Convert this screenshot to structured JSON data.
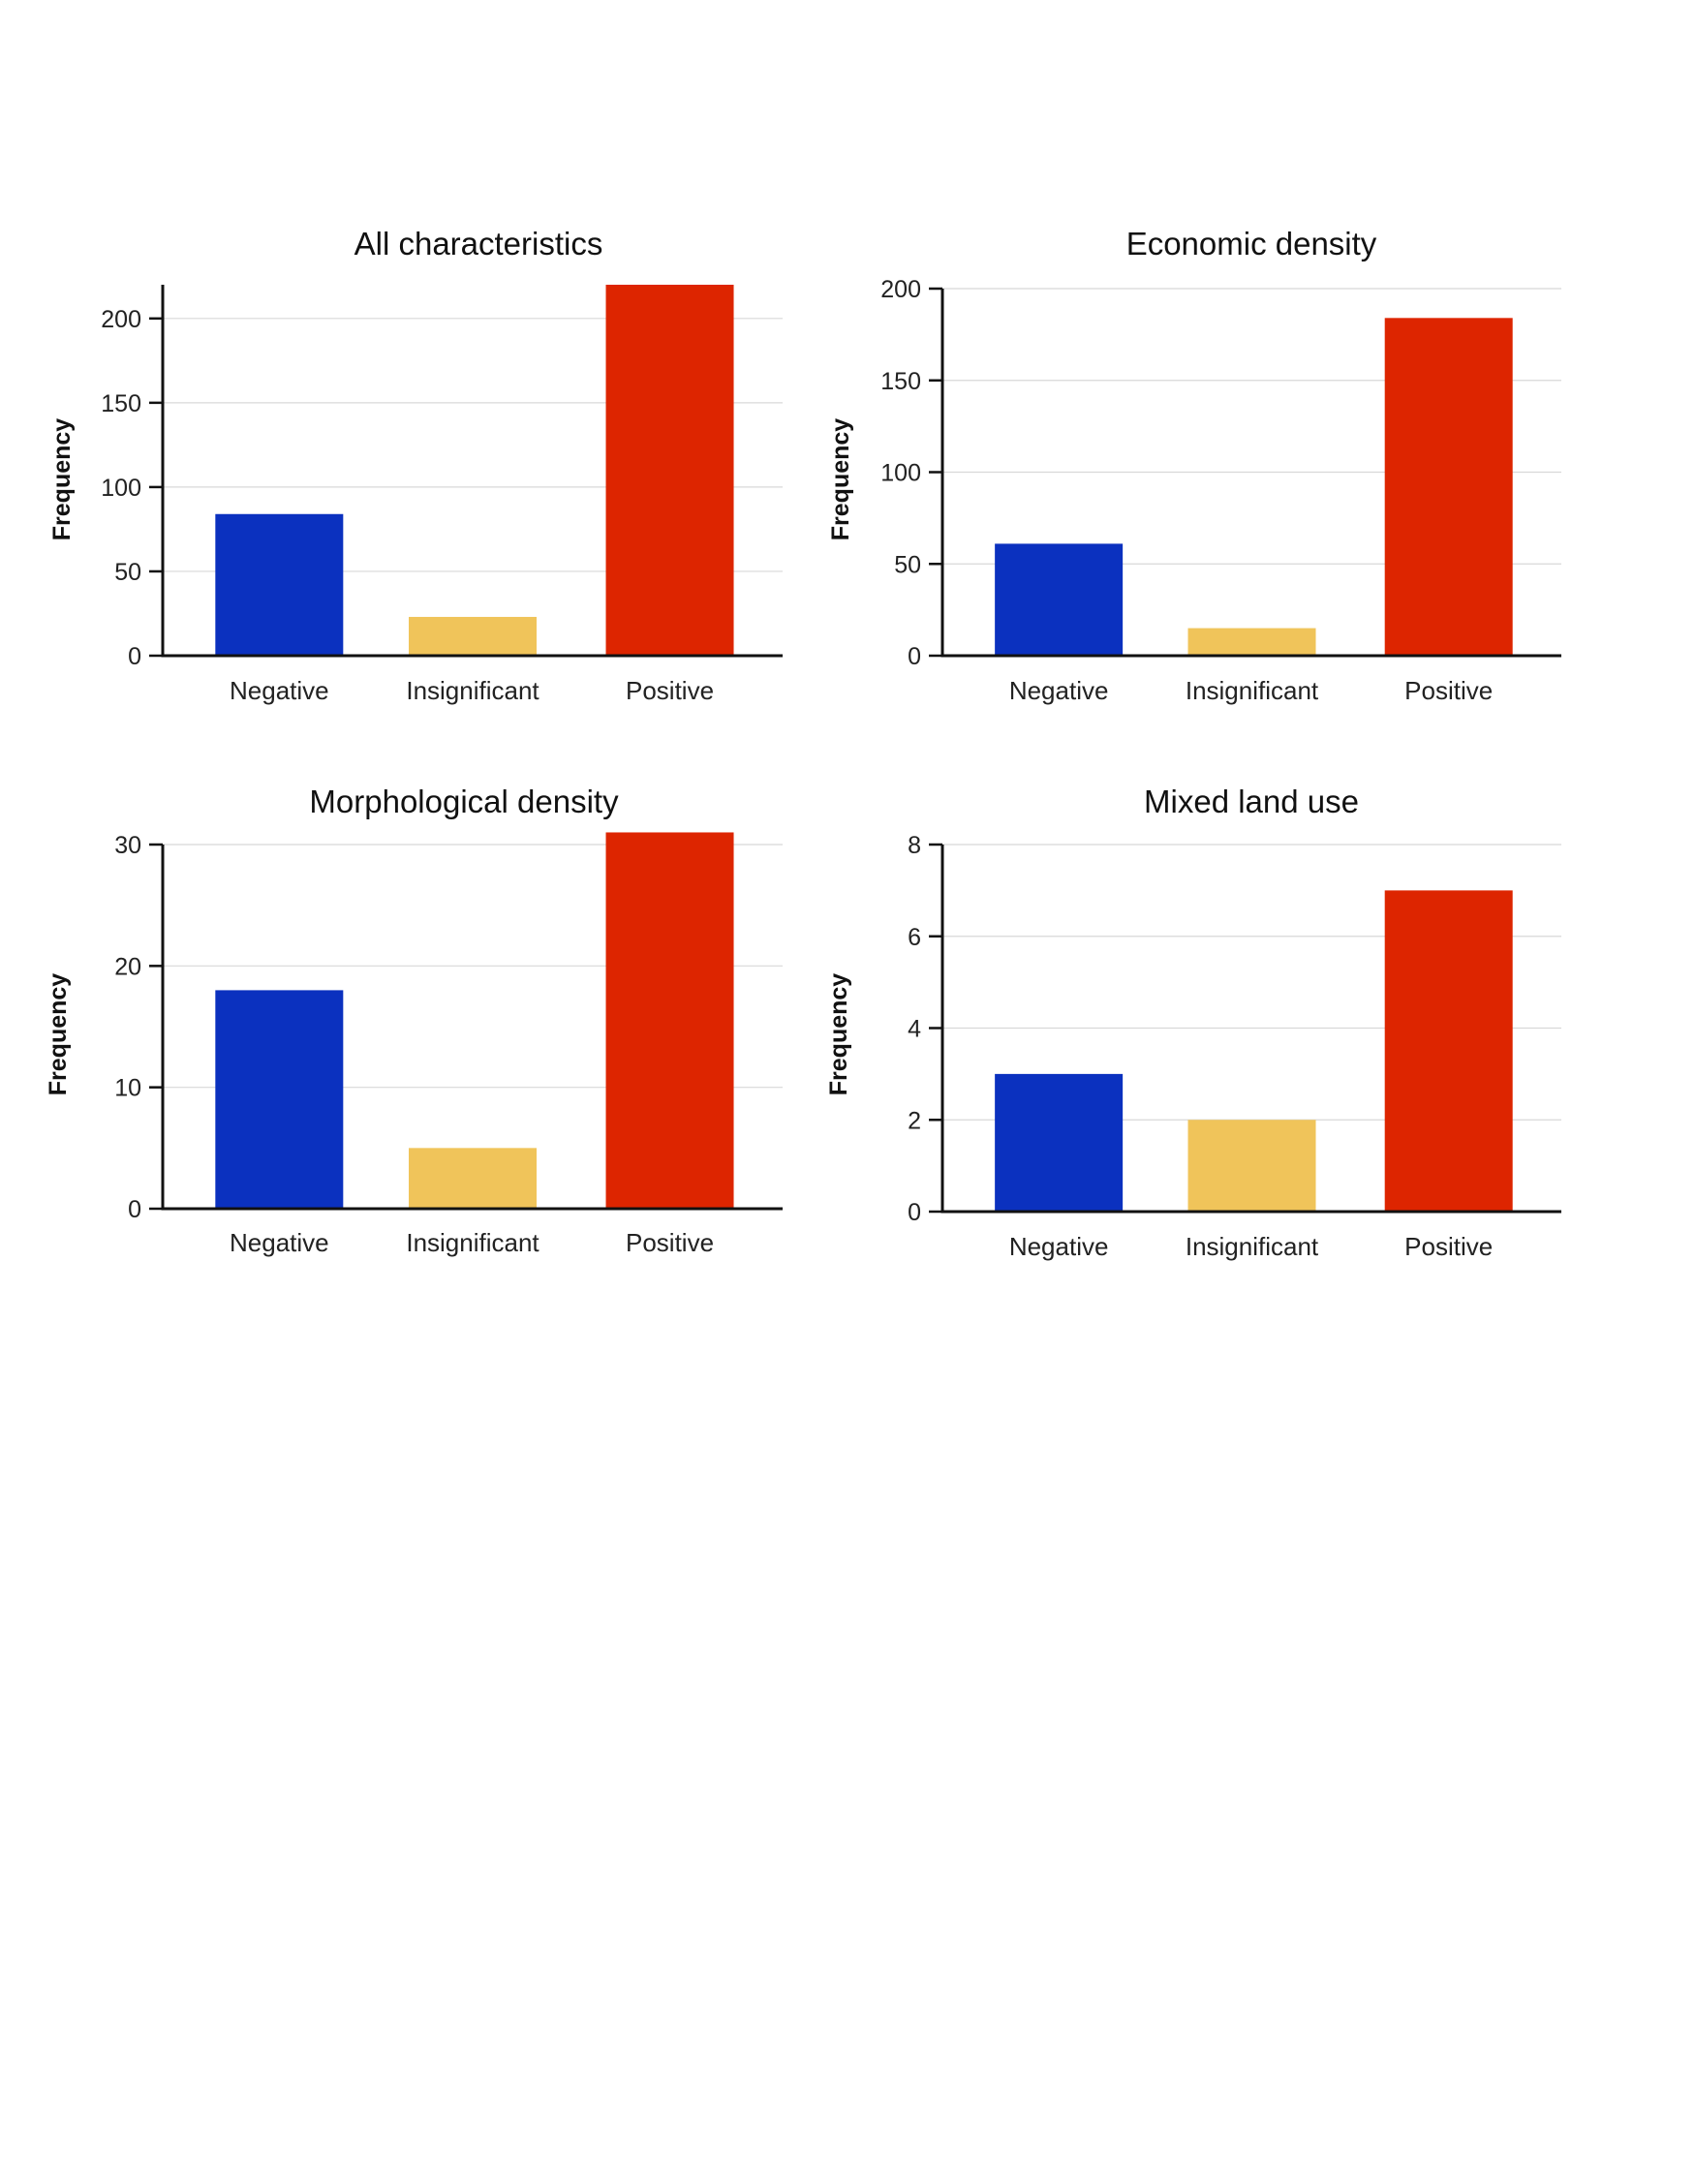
{
  "colors": {
    "negative": "#0b31bf",
    "insignificant": "#f0c45a",
    "positive": "#dd2500",
    "axis": "#111111",
    "grid": "#d8d8d8",
    "text": "#222222"
  },
  "chart_data": [
    {
      "type": "bar",
      "title": "All characteristics",
      "ylabel": "Frequency",
      "xlabel": "",
      "categories": [
        "Negative",
        "Insignificant",
        "Positive"
      ],
      "values": [
        84,
        23,
        220
      ],
      "ylim": [
        0,
        220
      ],
      "yticks": [
        0,
        50,
        100,
        150,
        200
      ],
      "yticklabels": [
        "0",
        "50",
        "100",
        "150",
        "200"
      ],
      "grid": true
    },
    {
      "type": "bar",
      "title": "Economic density",
      "ylabel": "Frequency",
      "xlabel": "",
      "categories": [
        "Negative",
        "Insignificant",
        "Positive"
      ],
      "values": [
        61,
        15,
        184
      ],
      "ylim": [
        0,
        200
      ],
      "yticks": [
        0,
        50,
        100,
        150,
        200
      ],
      "yticklabels": [
        "0",
        "50",
        "100",
        "150",
        "200"
      ],
      "grid": true
    },
    {
      "type": "bar",
      "title": "Morphological density",
      "ylabel": "Frequency",
      "xlabel": "",
      "categories": [
        "Negative",
        "Insignificant",
        "Positive"
      ],
      "values": [
        18,
        5,
        31
      ],
      "ylim": [
        0,
        30
      ],
      "yticks": [
        0,
        10,
        20,
        30
      ],
      "yticklabels": [
        "0",
        "10",
        "20",
        "30"
      ],
      "grid": true
    },
    {
      "type": "bar",
      "title": "Mixed land use",
      "ylabel": "Frequency",
      "xlabel": "",
      "categories": [
        "Negative",
        "Insignificant",
        "Positive"
      ],
      "values": [
        3,
        2,
        7
      ],
      "ylim": [
        0,
        8
      ],
      "yticks": [
        0,
        2,
        4,
        6,
        8
      ],
      "yticklabels": [
        "0",
        "2",
        "4",
        "6",
        "8"
      ],
      "grid": true
    }
  ]
}
